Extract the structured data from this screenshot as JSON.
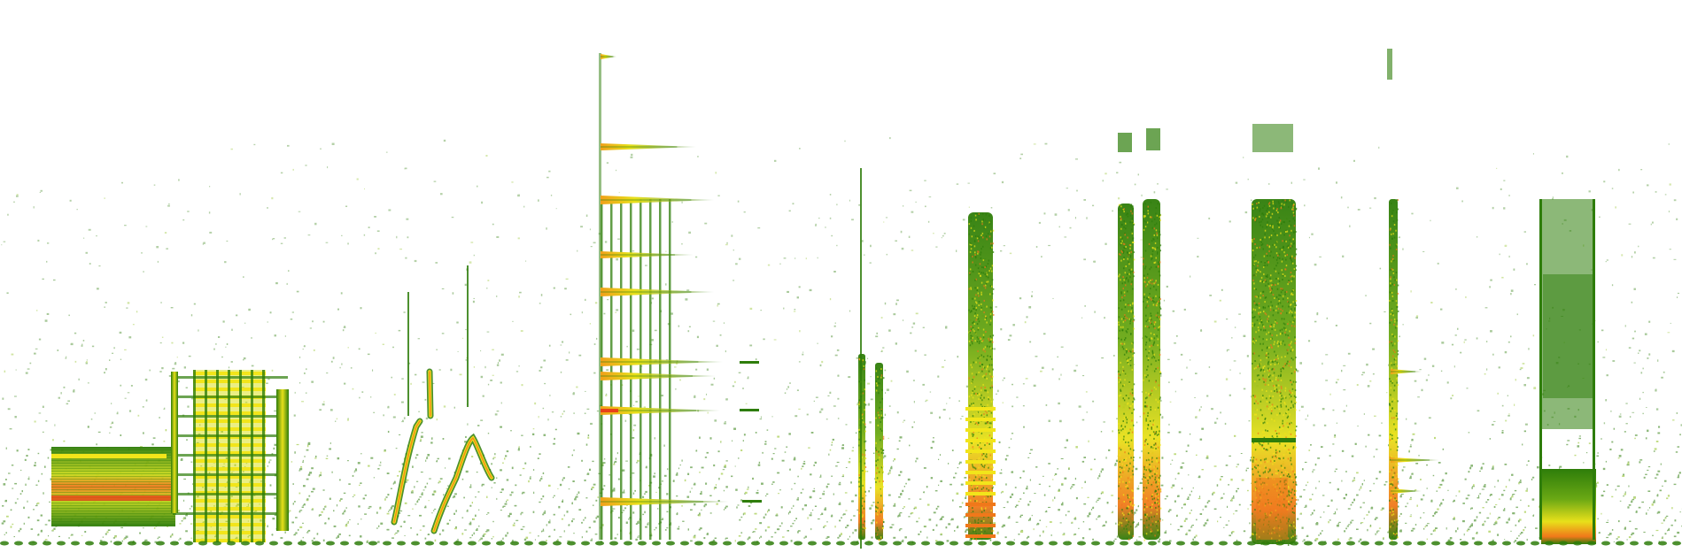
{
  "image": {
    "kind": "spectrogram",
    "background": "#ffffff",
    "palette": {
      "low": "#2e7d0a",
      "mid": "#8cbf1a",
      "high": "#f2e51a",
      "peak": "#f0781a",
      "max": "#e8401a"
    },
    "text": []
  }
}
